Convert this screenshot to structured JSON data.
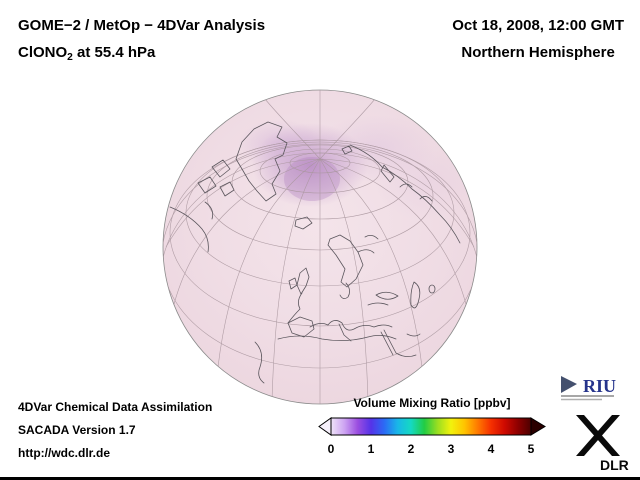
{
  "header": {
    "title_line1": "GOME−2 / MetOp − 4DVar Analysis",
    "species": "ClONO",
    "species_sub": "2",
    "level_suffix": " at 55.4 hPa",
    "datetime": "Oct 18, 2008, 12:00 GMT",
    "hemisphere": "Northern Hemisphere"
  },
  "footer": {
    "line1": "4DVar Chemical Data Assimilation",
    "line2": "SACADA Version 1.7",
    "line3": "http://wdc.dlr.de"
  },
  "colorbar": {
    "title": "Volume Mixing Ratio [ppbv]",
    "ticks": [
      "0",
      "1",
      "2",
      "3",
      "4",
      "5"
    ],
    "left_arrow_color": "#f6f0fb",
    "right_arrow_color": "#2a0000",
    "gradient": [
      "#efe4f8",
      "#cda4f2",
      "#9b4ee0",
      "#5533e8",
      "#2b6bf5",
      "#19b7e8",
      "#15d9c2",
      "#22cc44",
      "#9ade21",
      "#f2f20d",
      "#ffc400",
      "#ff7a00",
      "#f53000",
      "#cf0a00",
      "#8f0000",
      "#4d0000"
    ]
  },
  "logos": {
    "riu_text": "RIU",
    "dlr_text": "DLR"
  },
  "chart_data": {
    "type": "heatmap",
    "title": "GOME−2 / MetOp − 4DVar Analysis of ClONO2 at 55.4 hPa",
    "datetime": "Oct 18, 2008, 12:00 GMT",
    "projection": "Orthographic globe, Northern Hemisphere, centered near Europe / North Atlantic with geographic graticule",
    "variable": "ClONO2 volume mixing ratio",
    "units": "ppbv",
    "colorbar": {
      "min": 0,
      "max": 5,
      "ticks": [
        0,
        1,
        2,
        3,
        4,
        5
      ],
      "style": "rainbow bar with under-range and over-range arrow ends",
      "position": "bottom center"
    },
    "field_summary": [
      {
        "region": "Mid-latitudes and most of hemisphere (pale pink)",
        "approx_value_ppbv": 0.2
      },
      {
        "region": "Arctic cap north of Greenland / pole (light purple maximum)",
        "approx_value_ppbv": 1.0
      },
      {
        "region": "Band extending toward Siberian Arctic (faint lavender)",
        "approx_value_ppbv": 0.6
      }
    ],
    "annotations": [
      "4DVar Chemical Data Assimilation",
      "SACADA Version 1.7",
      "http://wdc.dlr.de"
    ],
    "grid": "graticule shown on globe"
  }
}
